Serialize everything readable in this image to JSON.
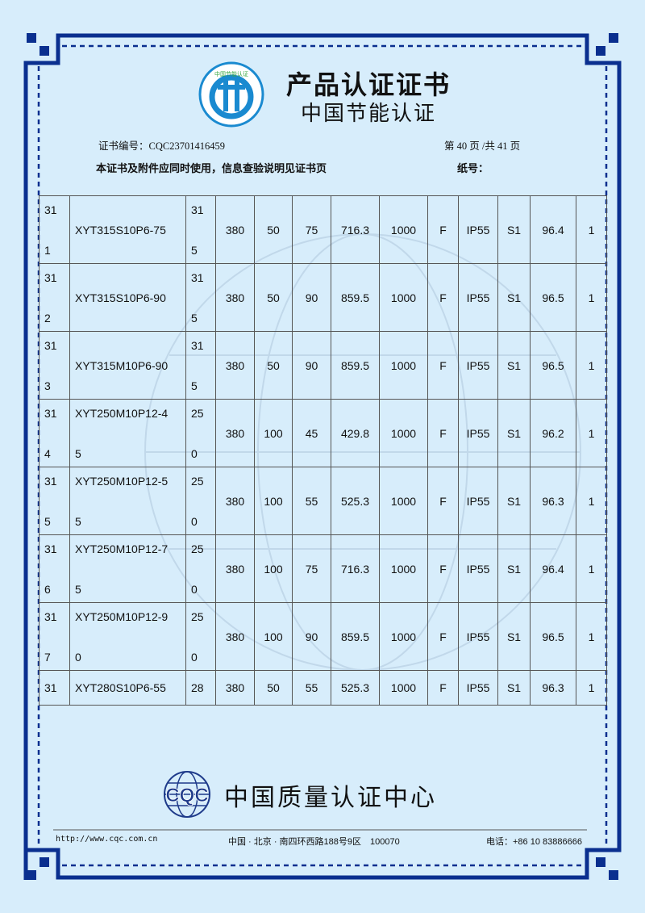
{
  "header": {
    "title": "产品认证证书",
    "subtitle": "中国节能认证",
    "logo_text": "中国节能认证 Energy Conservation Certification",
    "cert_no_label": "证书编号：",
    "cert_no": "CQC23701416459",
    "page_info": "第 40 页 /共 41 页",
    "notice": "本证书及附件应同时使用，信息查验说明见证书页",
    "paper_no_label": "纸号："
  },
  "table": {
    "rows": [
      {
        "no": [
          "31",
          "1"
        ],
        "model": "XYT315S10P6-75",
        "frame": [
          "31",
          "5"
        ],
        "cells": [
          "380",
          "50",
          "75",
          "716.3",
          "1000",
          "F",
          "IP55",
          "S1",
          "96.4",
          "1"
        ]
      },
      {
        "no": [
          "31",
          "2"
        ],
        "model": "XYT315S10P6-90",
        "frame": [
          "31",
          "5"
        ],
        "cells": [
          "380",
          "50",
          "90",
          "859.5",
          "1000",
          "F",
          "IP55",
          "S1",
          "96.5",
          "1"
        ]
      },
      {
        "no": [
          "31",
          "3"
        ],
        "model": "XYT315M10P6-90",
        "frame": [
          "31",
          "5"
        ],
        "cells": [
          "380",
          "50",
          "90",
          "859.5",
          "1000",
          "F",
          "IP55",
          "S1",
          "96.5",
          "1"
        ]
      },
      {
        "no": [
          "31",
          "4"
        ],
        "model": [
          "XYT250M10P12-4",
          "5"
        ],
        "frame": [
          "25",
          "0"
        ],
        "cells": [
          "380",
          "100",
          "45",
          "429.8",
          "1000",
          "F",
          "IP55",
          "S1",
          "96.2",
          "1"
        ]
      },
      {
        "no": [
          "31",
          "5"
        ],
        "model": [
          "XYT250M10P12-5",
          "5"
        ],
        "frame": [
          "25",
          "0"
        ],
        "cells": [
          "380",
          "100",
          "55",
          "525.3",
          "1000",
          "F",
          "IP55",
          "S1",
          "96.3",
          "1"
        ]
      },
      {
        "no": [
          "31",
          "6"
        ],
        "model": [
          "XYT250M10P12-7",
          "5"
        ],
        "frame": [
          "25",
          "0"
        ],
        "cells": [
          "380",
          "100",
          "75",
          "716.3",
          "1000",
          "F",
          "IP55",
          "S1",
          "96.4",
          "1"
        ]
      },
      {
        "no": [
          "31",
          "7"
        ],
        "model": [
          "XYT250M10P12-9",
          "0"
        ],
        "frame": [
          "25",
          "0"
        ],
        "cells": [
          "380",
          "100",
          "90",
          "859.5",
          "1000",
          "F",
          "IP55",
          "S1",
          "96.5",
          "1"
        ]
      },
      {
        "no": [
          "31"
        ],
        "model": "XYT280S10P6-55",
        "frame": [
          "28"
        ],
        "cells": [
          "380",
          "50",
          "55",
          "525.3",
          "1000",
          "F",
          "IP55",
          "S1",
          "96.3",
          "1"
        ]
      }
    ]
  },
  "footer": {
    "logo_text": "CQC",
    "org_name": "中国质量认证中心",
    "website": "http://www.cqc.com.cn",
    "address": "中国 · 北京 · 南四环西路188号9区　100070",
    "phone": "电话：+86 10 83886666"
  },
  "colors": {
    "frame": "#0a2f8f",
    "background": "#d7edfb",
    "logo_blue": "#1a8ad0",
    "logo_green": "#3aa845"
  }
}
